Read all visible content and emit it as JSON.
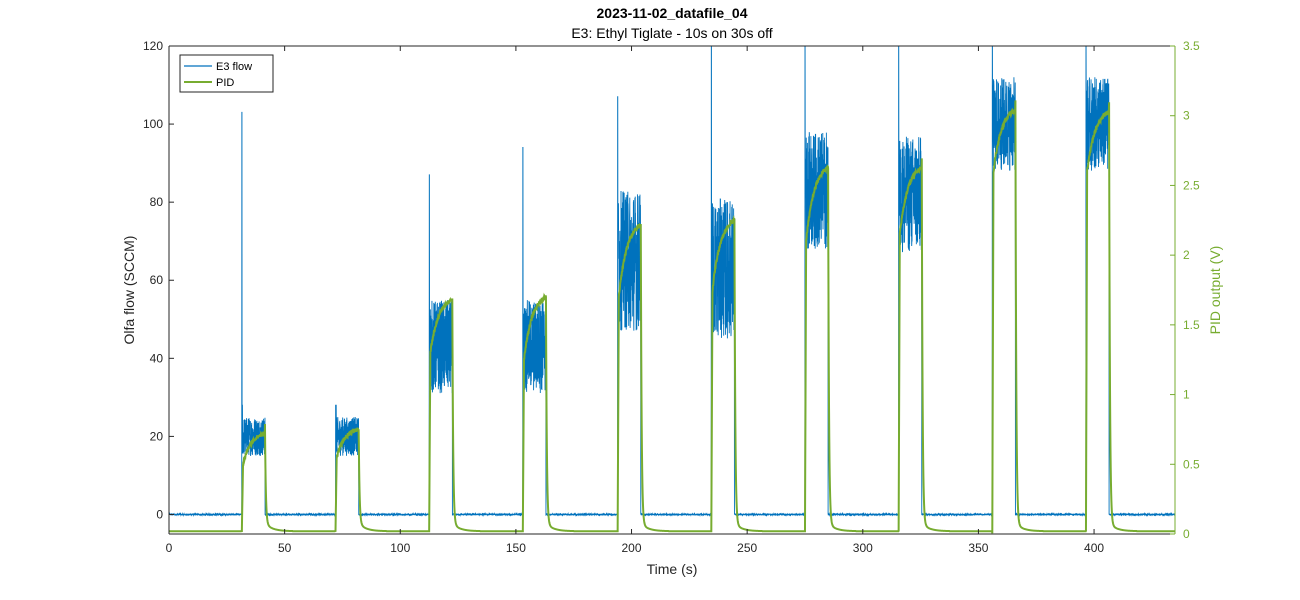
{
  "chart_data": {
    "type": "line",
    "title": "2023-11-02_datafile_04",
    "subtitle": "E3: Ethyl Tiglate - 10s on 30s off",
    "xlabel": "Time (s)",
    "ylabel": "Olfa flow (SCCM)",
    "y2label": "PID output (V)",
    "xlim": [
      0,
      435
    ],
    "ylim": [
      -5,
      120
    ],
    "y2lim": [
      0,
      3.5
    ],
    "xticks": [
      0,
      50,
      100,
      150,
      200,
      250,
      300,
      350,
      400
    ],
    "yticks": [
      0,
      20,
      40,
      60,
      80,
      100,
      120
    ],
    "y2ticks": [
      0,
      0.5,
      1,
      1.5,
      2,
      2.5,
      3,
      3.5
    ],
    "grid": false,
    "legend_position": "top-left",
    "colors": {
      "flow": "#0072bd",
      "pid": "#77ac30",
      "axis": "#262626"
    },
    "series": [
      {
        "name": "E3 flow",
        "axis": "left"
      },
      {
        "name": "PID",
        "axis": "right"
      }
    ],
    "pulses": [
      {
        "start": 31.5,
        "end": 41.5,
        "flow_mean": 20,
        "flow_spread": 5,
        "flow_spike": 103,
        "pid_start": 0.5,
        "pid_end": 0.72
      },
      {
        "start": 72,
        "end": 82,
        "flow_mean": 20,
        "flow_spread": 5,
        "flow_spike": 28,
        "pid_start": 0.55,
        "pid_end": 0.75
      },
      {
        "start": 112.5,
        "end": 122.5,
        "flow_mean": 43,
        "flow_spread": 12,
        "flow_spike": 87,
        "pid_start": 1.3,
        "pid_end": 1.68
      },
      {
        "start": 153,
        "end": 163,
        "flow_mean": 43,
        "flow_spread": 12,
        "flow_spike": 94,
        "pid_start": 1.25,
        "pid_end": 1.7
      },
      {
        "start": 194,
        "end": 204,
        "flow_mean": 65,
        "flow_spread": 18,
        "flow_spike": 107,
        "pid_start": 1.7,
        "pid_end": 2.22
      },
      {
        "start": 234.5,
        "end": 244.5,
        "flow_mean": 63,
        "flow_spread": 18,
        "flow_spike": 120,
        "pid_start": 1.75,
        "pid_end": 2.25
      },
      {
        "start": 275,
        "end": 285,
        "flow_mean": 83,
        "flow_spread": 15,
        "flow_spike": 120,
        "pid_start": 2.1,
        "pid_end": 2.63
      },
      {
        "start": 315.5,
        "end": 325.5,
        "flow_mean": 82,
        "flow_spread": 15,
        "flow_spike": 120,
        "pid_start": 2.15,
        "pid_end": 2.63
      },
      {
        "start": 356,
        "end": 366,
        "flow_mean": 100,
        "flow_spread": 12,
        "flow_spike": 120,
        "pid_start": 2.6,
        "pid_end": 3.04
      },
      {
        "start": 396.5,
        "end": 406.5,
        "flow_mean": 100,
        "flow_spread": 12,
        "flow_spike": 120,
        "pid_start": 2.6,
        "pid_end": 3.03
      }
    ]
  }
}
